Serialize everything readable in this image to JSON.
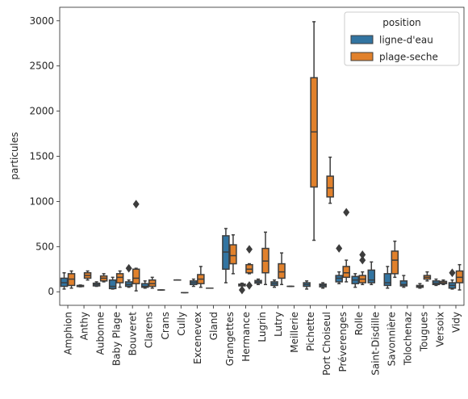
{
  "chart_data": {
    "type": "box",
    "title": "",
    "xlabel": "",
    "ylabel": "particules",
    "ylim": [
      -150,
      3150
    ],
    "yticks": [
      0,
      500,
      1000,
      1500,
      2000,
      2500,
      3000
    ],
    "grid": false,
    "legend": {
      "title": "position",
      "placement": "top-right",
      "entries": [
        {
          "name": "ligne-d'eau",
          "color": "#3274a1"
        },
        {
          "name": "plage-seche",
          "color": "#e1812c"
        }
      ]
    },
    "categories": [
      "Amphion",
      "Anthy",
      "Aubonne",
      "Baby Plage",
      "Bouveret",
      "Clarens",
      "Crans",
      "Cully",
      "Excenevex",
      "Gland",
      "Grangettes",
      "Hermance",
      "Lugrin",
      "Lutry",
      "Meillerie",
      "Pichette",
      "Port Choiseul",
      "Préverenges",
      "Rolle",
      "Saint-Disdille",
      "Savonnière",
      "Tolochenaz",
      "Tougues",
      "Versoix",
      "Vidy"
    ],
    "series": [
      {
        "name": "ligne-d'eau",
        "color": "#3274a1",
        "boxes": [
          {
            "category": "Amphion",
            "whislo": 30,
            "q1": 60,
            "med": 100,
            "q3": 150,
            "whishi": 210,
            "fliers": []
          },
          {
            "category": "Anthy",
            "whislo": 55,
            "q1": 58,
            "med": 65,
            "q3": 70,
            "whishi": 75,
            "fliers": []
          },
          {
            "category": "Aubonne",
            "whislo": 60,
            "q1": 65,
            "med": 80,
            "q3": 95,
            "whishi": 110,
            "fliers": []
          },
          {
            "category": "Baby Plage",
            "whislo": 30,
            "q1": 35,
            "med": 60,
            "q3": 130,
            "whishi": 160,
            "fliers": []
          },
          {
            "category": "Bouveret",
            "whislo": 50,
            "q1": 60,
            "med": 80,
            "q3": 110,
            "whishi": 130,
            "fliers": [
              260
            ]
          },
          {
            "category": "Clarens",
            "whislo": 40,
            "q1": 50,
            "med": 60,
            "q3": 90,
            "whishi": 120,
            "fliers": []
          },
          {
            "category": "Crans",
            "whislo": 20,
            "q1": 20,
            "med": 20,
            "q3": 20,
            "whishi": 20,
            "fliers": []
          },
          {
            "category": "Cully",
            "whislo": 130,
            "q1": 130,
            "med": 130,
            "q3": 130,
            "whishi": 130,
            "fliers": []
          },
          {
            "category": "Excenevex",
            "whislo": 60,
            "q1": 80,
            "med": 100,
            "q3": 120,
            "whishi": 140,
            "fliers": []
          },
          {
            "category": "Gland",
            "whislo": 40,
            "q1": 40,
            "med": 40,
            "q3": 40,
            "whishi": 40,
            "fliers": []
          },
          {
            "category": "Grangettes",
            "whislo": 100,
            "q1": 250,
            "med": 440,
            "q3": 620,
            "whishi": 700,
            "fliers": []
          },
          {
            "category": "Hermance",
            "whislo": 30,
            "q1": 65,
            "med": 75,
            "q3": 85,
            "whishi": 95,
            "fliers": [
              20
            ]
          },
          {
            "category": "Lugrin",
            "whislo": 80,
            "q1": 95,
            "med": 110,
            "q3": 125,
            "whishi": 140,
            "fliers": []
          },
          {
            "category": "Lutry",
            "whislo": 50,
            "q1": 70,
            "med": 90,
            "q3": 110,
            "whishi": 130,
            "fliers": []
          },
          {
            "category": "Meillerie",
            "whislo": 60,
            "q1": 60,
            "med": 60,
            "q3": 60,
            "whishi": 60,
            "fliers": []
          },
          {
            "category": "Pichette",
            "whislo": 30,
            "q1": 60,
            "med": 80,
            "q3": 100,
            "whishi": 120,
            "fliers": []
          },
          {
            "category": "Port Choiseul",
            "whislo": 40,
            "q1": 55,
            "med": 70,
            "q3": 85,
            "whishi": 100,
            "fliers": []
          },
          {
            "category": "Préverenges",
            "whislo": 90,
            "q1": 110,
            "med": 150,
            "q3": 180,
            "whishi": 220,
            "fliers": [
              480
            ]
          },
          {
            "category": "Rolle",
            "whislo": 50,
            "q1": 90,
            "med": 130,
            "q3": 170,
            "whishi": 200,
            "fliers": []
          },
          {
            "category": "Saint-Disdille",
            "whislo": 80,
            "q1": 100,
            "med": 130,
            "q3": 240,
            "whishi": 330,
            "fliers": []
          },
          {
            "category": "Savonnière",
            "whislo": 40,
            "q1": 70,
            "med": 100,
            "q3": 200,
            "whishi": 280,
            "fliers": []
          },
          {
            "category": "Tolochenaz",
            "whislo": 50,
            "q1": 65,
            "med": 80,
            "q3": 120,
            "whishi": 180,
            "fliers": []
          },
          {
            "category": "Tougues",
            "whislo": 40,
            "q1": 50,
            "med": 60,
            "q3": 70,
            "whishi": 90,
            "fliers": []
          },
          {
            "category": "Versoix",
            "whislo": 70,
            "q1": 80,
            "med": 95,
            "q3": 120,
            "whishi": 140,
            "fliers": []
          },
          {
            "category": "Vidy",
            "whislo": 30,
            "q1": 40,
            "med": 70,
            "q3": 100,
            "whishi": 130,
            "fliers": [
              210
            ]
          }
        ]
      },
      {
        "name": "plage-seche",
        "color": "#e1812c",
        "boxes": [
          {
            "category": "Amphion",
            "whislo": 40,
            "q1": 70,
            "med": 140,
            "q3": 200,
            "whishi": 230,
            "fliers": []
          },
          {
            "category": "Anthy",
            "whislo": 130,
            "q1": 150,
            "med": 180,
            "q3": 210,
            "whishi": 230,
            "fliers": []
          },
          {
            "category": "Aubonne",
            "whislo": 110,
            "q1": 120,
            "med": 150,
            "q3": 175,
            "whishi": 200,
            "fliers": []
          },
          {
            "category": "Baby Plage",
            "whislo": 50,
            "q1": 100,
            "med": 160,
            "q3": 200,
            "whishi": 230,
            "fliers": []
          },
          {
            "category": "Bouveret",
            "whislo": 10,
            "q1": 90,
            "med": 150,
            "q3": 250,
            "whishi": 260,
            "fliers": [
              970
            ]
          },
          {
            "category": "Clarens",
            "whislo": 40,
            "q1": 60,
            "med": 90,
            "q3": 130,
            "whishi": 160,
            "fliers": []
          },
          {
            "category": "Crans",
            "whislo": null,
            "q1": null,
            "med": null,
            "q3": null,
            "whishi": null,
            "fliers": []
          },
          {
            "category": "Cully",
            "whislo": -10,
            "q1": -10,
            "med": -10,
            "q3": -10,
            "whishi": -10,
            "fliers": []
          },
          {
            "category": "Excenevex",
            "whislo": 50,
            "q1": 90,
            "med": 140,
            "q3": 190,
            "whishi": 280,
            "fliers": []
          },
          {
            "category": "Gland",
            "whislo": null,
            "q1": null,
            "med": null,
            "q3": null,
            "whishi": null,
            "fliers": []
          },
          {
            "category": "Grangettes",
            "whislo": 200,
            "q1": 310,
            "med": 400,
            "q3": 520,
            "whishi": 630,
            "fliers": []
          },
          {
            "category": "Hermance",
            "whislo": 200,
            "q1": 210,
            "med": 250,
            "q3": 300,
            "whishi": 310,
            "fliers": [
              70,
              470
            ]
          },
          {
            "category": "Lugrin",
            "whislo": 80,
            "q1": 210,
            "med": 340,
            "q3": 480,
            "whishi": 660,
            "fliers": []
          },
          {
            "category": "Lutry",
            "whislo": 80,
            "q1": 150,
            "med": 220,
            "q3": 310,
            "whishi": 430,
            "fliers": []
          },
          {
            "category": "Meillerie",
            "whislo": null,
            "q1": null,
            "med": null,
            "q3": null,
            "whishi": null,
            "fliers": []
          },
          {
            "category": "Pichette",
            "whislo": 570,
            "q1": 1160,
            "med": 1770,
            "q3": 2370,
            "whishi": 2990,
            "fliers": []
          },
          {
            "category": "Port Choiseul",
            "whislo": 980,
            "q1": 1050,
            "med": 1150,
            "q3": 1280,
            "whishi": 1490,
            "fliers": []
          },
          {
            "category": "Préverenges",
            "whislo": 110,
            "q1": 160,
            "med": 210,
            "q3": 280,
            "whishi": 350,
            "fliers": [
              880
            ]
          },
          {
            "category": "Rolle",
            "whislo": 80,
            "q1": 100,
            "med": 140,
            "q3": 180,
            "whishi": 220,
            "fliers": [
              350,
              410
            ]
          },
          {
            "category": "Saint-Disdille",
            "whislo": null,
            "q1": null,
            "med": null,
            "q3": null,
            "whishi": null,
            "fliers": []
          },
          {
            "category": "Savonnière",
            "whislo": 160,
            "q1": 200,
            "med": 350,
            "q3": 450,
            "whishi": 560,
            "fliers": []
          },
          {
            "category": "Tolochenaz",
            "whislo": null,
            "q1": null,
            "med": null,
            "q3": null,
            "whishi": null,
            "fliers": []
          },
          {
            "category": "Tougues",
            "whislo": 120,
            "q1": 140,
            "med": 160,
            "q3": 180,
            "whishi": 220,
            "fliers": []
          },
          {
            "category": "Versoix",
            "whislo": 80,
            "q1": 90,
            "med": 100,
            "q3": 115,
            "whishi": 130,
            "fliers": []
          },
          {
            "category": "Vidy",
            "whislo": 20,
            "q1": 100,
            "med": 160,
            "q3": 230,
            "whishi": 300,
            "fliers": []
          }
        ]
      }
    ]
  }
}
